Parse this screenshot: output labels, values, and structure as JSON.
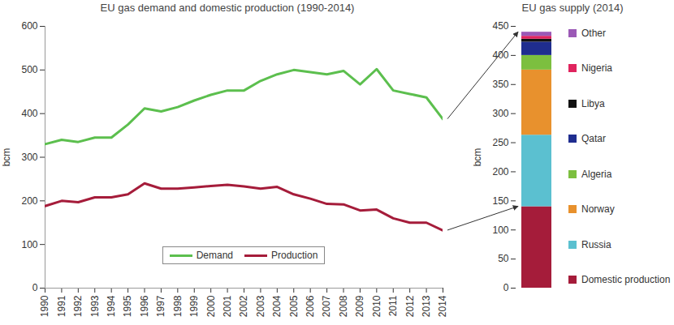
{
  "chart_data": [
    {
      "type": "line",
      "title": "EU gas demand and domestic production (1990-2014)",
      "x": [
        1990,
        1991,
        1992,
        1993,
        1994,
        1995,
        1996,
        1997,
        1998,
        1999,
        2000,
        2001,
        2002,
        2003,
        2004,
        2005,
        2006,
        2007,
        2008,
        2009,
        2010,
        2011,
        2012,
        2013,
        2014
      ],
      "xlim": [
        1990,
        2014
      ],
      "xticks": [
        1990,
        1991,
        1992,
        1993,
        1994,
        1995,
        1996,
        1997,
        1998,
        1999,
        2000,
        2001,
        2002,
        2003,
        2004,
        2005,
        2006,
        2007,
        2008,
        2009,
        2010,
        2011,
        2012,
        2013,
        2014
      ],
      "ylabel": "bcm",
      "ylim": [
        0,
        600
      ],
      "yticks": [
        0,
        100,
        200,
        300,
        400,
        500,
        600
      ],
      "legend": "bottom",
      "series": [
        {
          "name": "Demand",
          "color": "#5cbf4e",
          "values": [
            330,
            340,
            335,
            345,
            345,
            375,
            412,
            405,
            415,
            430,
            443,
            453,
            453,
            475,
            490,
            500,
            495,
            490,
            498,
            467,
            502,
            453,
            445,
            437,
            387
          ]
        },
        {
          "name": "Production",
          "color": "#a51c3a",
          "values": [
            188,
            200,
            197,
            208,
            208,
            215,
            240,
            228,
            228,
            231,
            234,
            237,
            233,
            228,
            232,
            215,
            205,
            193,
            192,
            178,
            180,
            160,
            150,
            150,
            132
          ]
        }
      ]
    },
    {
      "type": "bar",
      "stacked": true,
      "title": "EU gas supply (2014)",
      "categories": [
        null
      ],
      "ylabel": "bcm",
      "ylim": [
        0,
        450
      ],
      "yticks": [
        0,
        50,
        100,
        150,
        200,
        250,
        300,
        350,
        400,
        450
      ],
      "legend": "right",
      "series": [
        {
          "name": "Domestic production",
          "color": "#a51c3a",
          "values": [
            140
          ]
        },
        {
          "name": "Russia",
          "color": "#5bc0d0",
          "values": [
            123
          ]
        },
        {
          "name": "Norway",
          "color": "#e8912d",
          "values": [
            112
          ]
        },
        {
          "name": "Algeria",
          "color": "#7cbf3f",
          "values": [
            25
          ]
        },
        {
          "name": "Qatar",
          "color": "#1f2d8f",
          "values": [
            23
          ]
        },
        {
          "name": "Libya",
          "color": "#111111",
          "values": [
            5
          ]
        },
        {
          "name": "Nigeria",
          "color": "#e0245e",
          "values": [
            5
          ]
        },
        {
          "name": "Other",
          "color": "#9b59b6",
          "values": [
            7
          ]
        }
      ]
    }
  ]
}
